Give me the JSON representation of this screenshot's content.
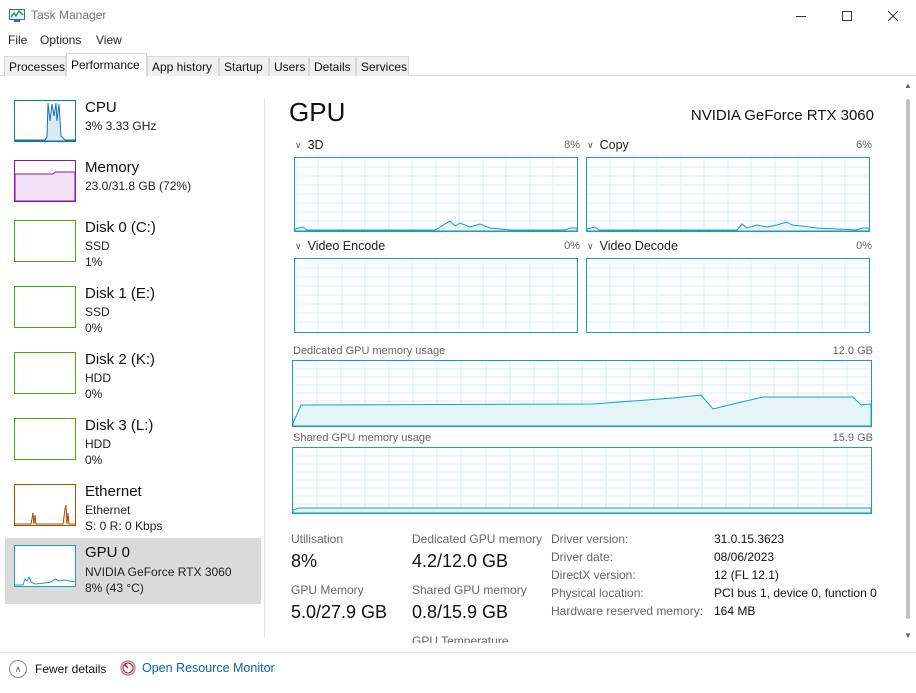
{
  "window": {
    "title": "Task Manager",
    "icon": "task-manager-icon",
    "controls": [
      "minimize-icon",
      "maximize-icon",
      "close-icon"
    ]
  },
  "menu": {
    "items": [
      "File",
      "Options",
      "View"
    ]
  },
  "tabs": {
    "items": [
      "Processes",
      "Performance",
      "App history",
      "Startup",
      "Users",
      "Details",
      "Services"
    ],
    "active": "Performance"
  },
  "sidebar": {
    "items": [
      {
        "name": "CPU",
        "sub1": "3%  3.33 GHz",
        "sub2": "",
        "sub3": "",
        "color": "#1175b4"
      },
      {
        "name": "Memory",
        "sub1": "23.0/31.8 GB (72%)",
        "sub2": "",
        "sub3": "",
        "color": "#8b12ae"
      },
      {
        "name": "Disk 0 (C:)",
        "sub1": "SSD",
        "sub2": "1%",
        "sub3": "",
        "color": "#4da60c"
      },
      {
        "name": "Disk 1 (E:)",
        "sub1": "SSD",
        "sub2": "0%",
        "sub3": "",
        "color": "#4da60c"
      },
      {
        "name": "Disk 2 (K:)",
        "sub1": "HDD",
        "sub2": "0%",
        "sub3": "",
        "color": "#4da60c"
      },
      {
        "name": "Disk 3 (L:)",
        "sub1": "HDD",
        "sub2": "0%",
        "sub3": "",
        "color": "#4da60c"
      },
      {
        "name": "Ethernet",
        "sub1": "Ethernet",
        "sub2": "S: 0 R: 0 Kbps",
        "sub3": "",
        "color": "#a74f01"
      },
      {
        "name": "GPU 0",
        "sub1": "NVIDIA GeForce RTX 3060",
        "sub2": "8% (43 °C)",
        "sub3": "",
        "color": "#1ba0b6"
      }
    ],
    "selected": "GPU 0"
  },
  "gpu": {
    "title": "GPU",
    "model": "NVIDIA GeForce RTX 3060",
    "engines": [
      {
        "label": "3D",
        "percent": "8%",
        "level": 0.08
      },
      {
        "label": "Copy",
        "percent": "6%",
        "level": 0.06
      },
      {
        "label": "Video Encode",
        "percent": "0%",
        "level": 0.0
      },
      {
        "label": "Video Decode",
        "percent": "0%",
        "level": 0.0
      }
    ],
    "dedicated_label": "Dedicated GPU memory usage",
    "dedicated_max": "12.0 GB",
    "dedicated_level": 0.35,
    "shared_label": "Shared GPU memory usage",
    "shared_max": "15.9 GB",
    "shared_level": 0.05,
    "graph_color": "#1ba0b6",
    "stats": {
      "utilisation_label": "Utilisation",
      "utilisation_value": "8%",
      "dedicated_label": "Dedicated GPU memory",
      "dedicated_value": "4.2/12.0 GB",
      "gpu_memory_label": "GPU Memory",
      "gpu_memory_value": "5.0/27.9 GB",
      "shared_label": "Shared GPU memory",
      "shared_value": "0.8/15.9 GB",
      "temperature_label": "GPU Temperature"
    },
    "info": [
      {
        "label": "Driver version:",
        "value": "31.0.15.3623"
      },
      {
        "label": "Driver date:",
        "value": "08/06/2023"
      },
      {
        "label": "DirectX version:",
        "value": "12 (FL 12.1)"
      },
      {
        "label": "Physical location:",
        "value": "PCI bus 1, device 0, function 0"
      },
      {
        "label": "Hardware reserved memory:",
        "value": "164 MB"
      }
    ]
  },
  "footer": {
    "fewer_details": "Fewer details",
    "open_resource_monitor": "Open Resource Monitor"
  }
}
